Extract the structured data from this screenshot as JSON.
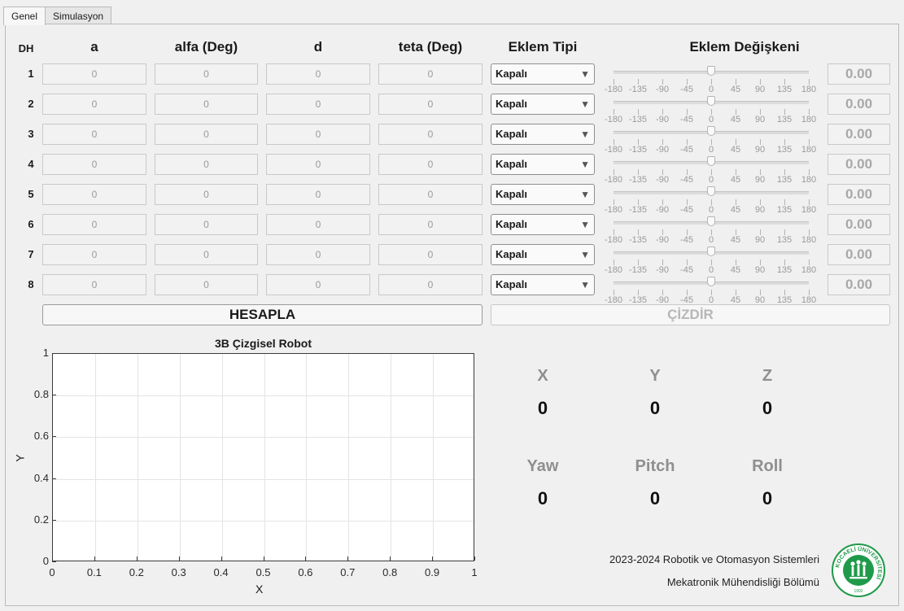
{
  "tabs": [
    {
      "label": "Genel",
      "active": true
    },
    {
      "label": "Simulasyon",
      "active": false
    }
  ],
  "table": {
    "headers": {
      "dh": "DH",
      "a": "a",
      "alfa": "alfa (Deg)",
      "d": "d",
      "teta": "teta (Deg)",
      "joint_type": "Eklem Tipi",
      "joint_var": "Eklem Değişkeni"
    },
    "rows": [
      {
        "num": "1",
        "a": "0",
        "alfa": "0",
        "d": "0",
        "teta": "0",
        "type": "Kapalı",
        "slider_value": 0,
        "output": "0.00"
      },
      {
        "num": "2",
        "a": "0",
        "alfa": "0",
        "d": "0",
        "teta": "0",
        "type": "Kapalı",
        "slider_value": 0,
        "output": "0.00"
      },
      {
        "num": "3",
        "a": "0",
        "alfa": "0",
        "d": "0",
        "teta": "0",
        "type": "Kapalı",
        "slider_value": 0,
        "output": "0.00"
      },
      {
        "num": "4",
        "a": "0",
        "alfa": "0",
        "d": "0",
        "teta": "0",
        "type": "Kapalı",
        "slider_value": 0,
        "output": "0.00"
      },
      {
        "num": "5",
        "a": "0",
        "alfa": "0",
        "d": "0",
        "teta": "0",
        "type": "Kapalı",
        "slider_value": 0,
        "output": "0.00"
      },
      {
        "num": "6",
        "a": "0",
        "alfa": "0",
        "d": "0",
        "teta": "0",
        "type": "Kapalı",
        "slider_value": 0,
        "output": "0.00"
      },
      {
        "num": "7",
        "a": "0",
        "alfa": "0",
        "d": "0",
        "teta": "0",
        "type": "Kapalı",
        "slider_value": 0,
        "output": "0.00"
      },
      {
        "num": "8",
        "a": "0",
        "alfa": "0",
        "d": "0",
        "teta": "0",
        "type": "Kapalı",
        "slider_value": 0,
        "output": "0.00"
      }
    ],
    "slider_ticks": [
      "-180",
      "-135",
      "-90",
      "-45",
      "0",
      "45",
      "90",
      "135",
      "180"
    ],
    "slider_range": [
      -180,
      180
    ],
    "dropdown_arrow": "▼"
  },
  "buttons": {
    "hesapla": "HESAPLA",
    "cizdir": "ÇİZDİR"
  },
  "plot": {
    "title": "3B Çizgisel Robot",
    "xlabel": "X",
    "ylabel": "Y",
    "xticks": [
      "0",
      "0.1",
      "0.2",
      "0.3",
      "0.4",
      "0.5",
      "0.6",
      "0.7",
      "0.8",
      "0.9",
      "1"
    ],
    "yticks": [
      "0",
      "0.2",
      "0.4",
      "0.6",
      "0.8",
      "1"
    ],
    "xlim": [
      0,
      1
    ],
    "ylim": [
      0,
      1
    ],
    "grid": true
  },
  "pose": {
    "x_label": "X",
    "x_value": "0",
    "y_label": "Y",
    "y_value": "0",
    "z_label": "Z",
    "z_value": "0",
    "yaw_label": "Yaw",
    "yaw_value": "0",
    "pitch_label": "Pitch",
    "pitch_value": "0",
    "roll_label": "Roll",
    "roll_value": "0"
  },
  "footer": {
    "line1": "2023-2024 Robotik ve Otomasyon Sistemleri",
    "line2": "Mekatronik Mühendisliği Bölümü"
  },
  "logo": {
    "text": "KOCAELİ ÜNİVERSİTESİ",
    "year": "1992",
    "color": "#1f9a4a"
  }
}
